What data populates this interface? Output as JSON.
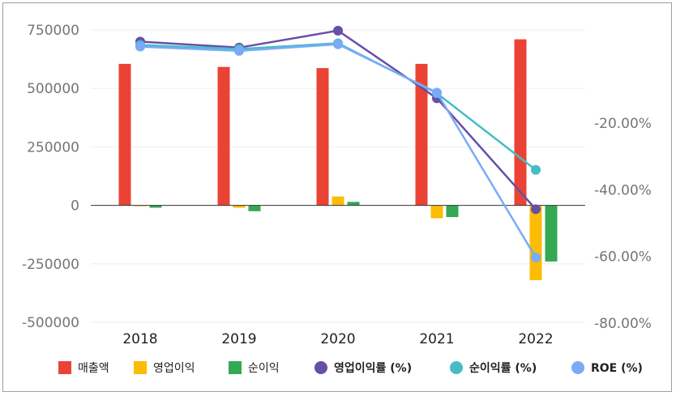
{
  "chart_data": {
    "type": "bar",
    "categories": [
      "2018",
      "2019",
      "2020",
      "2021",
      "2022"
    ],
    "left_axis": {
      "ticks": [
        750000,
        500000,
        250000,
        0,
        -250000,
        -500000
      ],
      "tick_labels": [
        "750000",
        "500000",
        "250000",
        "0",
        "-250000",
        "-500000"
      ],
      "range": [
        -500000,
        750000
      ]
    },
    "right_axis": {
      "ticks": [
        -20,
        -40,
        -60,
        -80
      ],
      "tick_labels": [
        "-20.00%",
        "-40.00%",
        "-60.00%",
        "-80.00%"
      ],
      "range": [
        -80,
        8
      ]
    },
    "bar_series": [
      {
        "name": "매출액",
        "color": "#ea4335",
        "values": [
          605000,
          592000,
          587000,
          605000,
          710000
        ]
      },
      {
        "name": "영업이익",
        "color": "#fbbc04",
        "values": [
          -2000,
          -10000,
          38000,
          -55000,
          -320000
        ]
      },
      {
        "name": "순이익",
        "color": "#34a853",
        "values": [
          -10000,
          -25000,
          15000,
          -50000,
          -240000
        ]
      }
    ],
    "line_series": [
      {
        "name": "영업이익률 (%)",
        "color": "#674ea7",
        "values": [
          4.5,
          2.7,
          7.8,
          -12.5,
          -45.8
        ]
      },
      {
        "name": "순이익률 (%)",
        "color": "#46bdc6",
        "values": [
          3.5,
          2.3,
          4.0,
          -11.0,
          -34.0
        ]
      },
      {
        "name": "ROE (%)",
        "color": "#7baaf7",
        "values": [
          3.0,
          1.7,
          3.7,
          -10.8,
          -60.3
        ]
      }
    ],
    "legend_position": "bottom",
    "grid": true
  },
  "legend": [
    {
      "label": "매출액",
      "color": "#ea4335",
      "shape": "square",
      "bold": false
    },
    {
      "label": "영업이익",
      "color": "#fbbc04",
      "shape": "square",
      "bold": false
    },
    {
      "label": "순이익",
      "color": "#34a853",
      "shape": "square",
      "bold": false
    },
    {
      "label": "영업이익률 (%)",
      "color": "#674ea7",
      "shape": "circle",
      "bold": true
    },
    {
      "label": "순이익률 (%)",
      "color": "#46bdc6",
      "shape": "circle",
      "bold": true
    },
    {
      "label": "ROE (%)",
      "color": "#7baaf7",
      "shape": "circle",
      "bold": true
    }
  ]
}
